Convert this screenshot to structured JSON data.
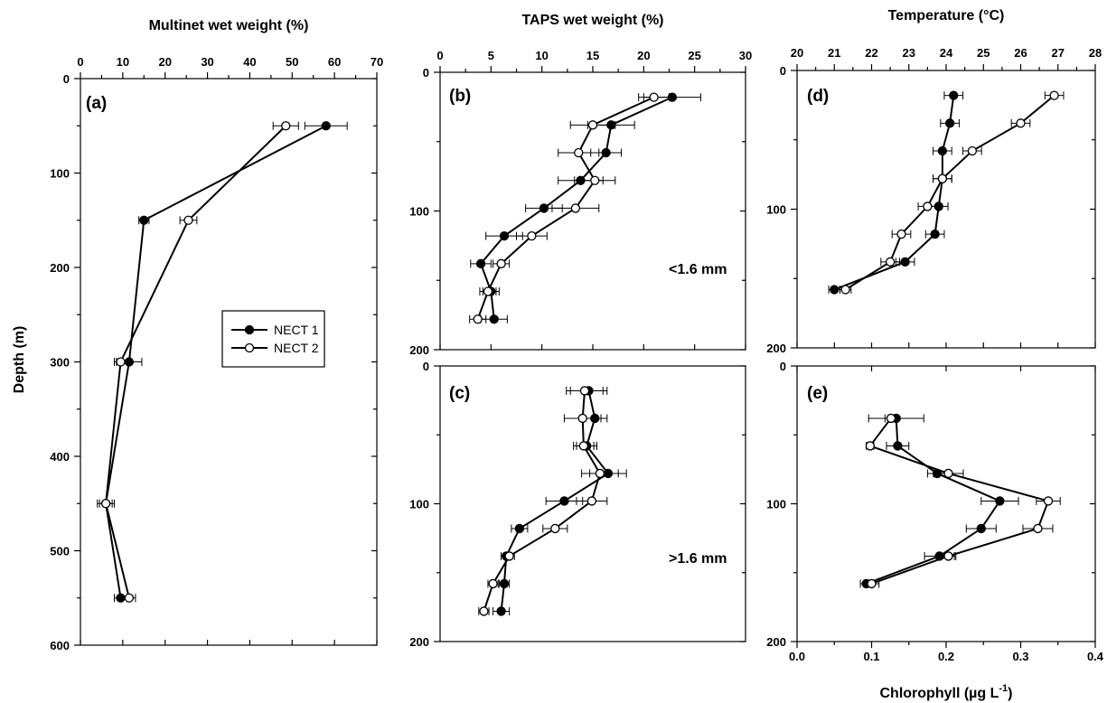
{
  "legend": [
    {
      "name": "NECT 1",
      "marker": "filled"
    },
    {
      "name": "NECT 2",
      "marker": "open"
    }
  ],
  "shared_y_label": "Depth (m)",
  "chart_data": [
    {
      "id": "a",
      "type": "line",
      "panel_label": "(a)",
      "title": "Multinet wet weight (%)",
      "xlabel": "Multinet wet weight (%)",
      "ylabel": "Depth (m)",
      "xlim": [
        0,
        70
      ],
      "ylim": [
        0,
        600
      ],
      "xticks": [
        0,
        10,
        20,
        30,
        40,
        50,
        60,
        70
      ],
      "yticks": [
        0,
        100,
        200,
        300,
        400,
        500,
        600
      ],
      "x_axis_position": "top",
      "y_inverted": true,
      "series": [
        {
          "name": "NECT 1",
          "marker": "filled",
          "points": [
            {
              "x": 58.0,
              "y": 50,
              "err": 5.0
            },
            {
              "x": 15.0,
              "y": 150,
              "err": 1.2
            },
            {
              "x": 11.5,
              "y": 300,
              "err": 3.0
            },
            {
              "x": 6.0,
              "y": 450,
              "err": 2.0
            },
            {
              "x": 9.5,
              "y": 550,
              "err": 1.5
            }
          ]
        },
        {
          "name": "NECT 2",
          "marker": "open",
          "points": [
            {
              "x": 48.5,
              "y": 50,
              "err": 3.0
            },
            {
              "x": 25.5,
              "y": 150,
              "err": 2.0
            },
            {
              "x": 9.5,
              "y": 300,
              "err": 1.5
            },
            {
              "x": 6.0,
              "y": 450,
              "err": 1.5
            },
            {
              "x": 11.5,
              "y": 550,
              "err": 1.5
            }
          ]
        }
      ]
    },
    {
      "id": "b",
      "type": "line",
      "panel_label": "(b)",
      "title": "TAPS wet weight (%)",
      "xlabel": "TAPS wet weight (%)",
      "ylabel": "",
      "xlim": [
        0,
        30
      ],
      "ylim": [
        0,
        200
      ],
      "xticks": [
        0,
        5,
        10,
        15,
        20,
        25,
        30
      ],
      "yticks": [
        0,
        100,
        200
      ],
      "x_axis_position": "top",
      "y_inverted": true,
      "annotation": "<1.6 mm",
      "series": [
        {
          "name": "NECT 1",
          "marker": "filled",
          "points": [
            {
              "x": 22.8,
              "y": 18,
              "err": 2.8
            },
            {
              "x": 16.8,
              "y": 38,
              "err": 2.3
            },
            {
              "x": 16.3,
              "y": 58,
              "err": 1.5
            },
            {
              "x": 13.8,
              "y": 78,
              "err": 2.2
            },
            {
              "x": 10.2,
              "y": 98,
              "err": 1.8
            },
            {
              "x": 6.3,
              "y": 118,
              "err": 1.8
            },
            {
              "x": 4.0,
              "y": 138,
              "err": 1.0
            },
            {
              "x": 5.0,
              "y": 158,
              "err": 0.8
            },
            {
              "x": 5.3,
              "y": 178,
              "err": 1.3
            }
          ]
        },
        {
          "name": "NECT 2",
          "marker": "open",
          "points": [
            {
              "x": 21.0,
              "y": 18,
              "err": 1.5
            },
            {
              "x": 15.0,
              "y": 38,
              "err": 2.2
            },
            {
              "x": 13.6,
              "y": 58,
              "err": 2.0
            },
            {
              "x": 15.2,
              "y": 78,
              "err": 2.0
            },
            {
              "x": 13.3,
              "y": 98,
              "err": 2.3
            },
            {
              "x": 9.0,
              "y": 118,
              "err": 1.5
            },
            {
              "x": 6.0,
              "y": 138,
              "err": 0.8
            },
            {
              "x": 4.7,
              "y": 158,
              "err": 0.8
            },
            {
              "x": 3.7,
              "y": 178,
              "err": 0.8
            }
          ]
        }
      ]
    },
    {
      "id": "c",
      "type": "line",
      "panel_label": "(c)",
      "title": "",
      "xlabel": "",
      "ylabel": "",
      "xlim": [
        0,
        30
      ],
      "ylim": [
        0,
        200
      ],
      "xticks": [],
      "yticks": [
        0,
        100,
        200
      ],
      "y_inverted": true,
      "annotation": ">1.6 mm",
      "series": [
        {
          "name": "NECT 1",
          "marker": "filled",
          "points": [
            {
              "x": 14.6,
              "y": 18,
              "err": 1.8
            },
            {
              "x": 15.2,
              "y": 38,
              "err": 1.2
            },
            {
              "x": 14.4,
              "y": 58,
              "err": 1.0
            },
            {
              "x": 16.5,
              "y": 78,
              "err": 1.8
            },
            {
              "x": 12.2,
              "y": 98,
              "err": 1.8
            },
            {
              "x": 7.8,
              "y": 118,
              "err": 0.8
            },
            {
              "x": 6.5,
              "y": 138,
              "err": 0.5
            },
            {
              "x": 6.3,
              "y": 158,
              "err": 0.5
            },
            {
              "x": 6.0,
              "y": 178,
              "err": 0.8
            }
          ]
        },
        {
          "name": "NECT 2",
          "marker": "open",
          "points": [
            {
              "x": 14.2,
              "y": 18,
              "err": 1.8
            },
            {
              "x": 14.0,
              "y": 38,
              "err": 1.8
            },
            {
              "x": 14.1,
              "y": 58,
              "err": 1.0
            },
            {
              "x": 15.7,
              "y": 78,
              "err": 1.8
            },
            {
              "x": 14.9,
              "y": 98,
              "err": 1.5
            },
            {
              "x": 11.3,
              "y": 118,
              "err": 1.2
            },
            {
              "x": 6.8,
              "y": 138,
              "err": 0.5
            },
            {
              "x": 5.2,
              "y": 158,
              "err": 0.5
            },
            {
              "x": 4.3,
              "y": 178,
              "err": 0.5
            }
          ]
        }
      ]
    },
    {
      "id": "d",
      "type": "line",
      "panel_label": "(d)",
      "title": "Temperature (°C)",
      "xlabel": "Temperature (°C)",
      "ylabel": "",
      "xlim": [
        20,
        28
      ],
      "ylim": [
        0,
        200
      ],
      "xticks": [
        20,
        21,
        22,
        23,
        24,
        25,
        26,
        27,
        28
      ],
      "yticks": [
        0,
        100,
        200
      ],
      "x_axis_position": "top",
      "y_inverted": true,
      "series": [
        {
          "name": "NECT 1",
          "marker": "filled",
          "points": [
            {
              "x": 24.2,
              "y": 18,
              "err": 0.25
            },
            {
              "x": 24.1,
              "y": 38,
              "err": 0.25
            },
            {
              "x": 23.9,
              "y": 58,
              "err": 0.25
            },
            {
              "x": 23.9,
              "y": 78,
              "err": 0.25
            },
            {
              "x": 23.8,
              "y": 98,
              "err": 0.25
            },
            {
              "x": 23.7,
              "y": 118,
              "err": 0.25
            },
            {
              "x": 22.9,
              "y": 138,
              "err": 0.25
            },
            {
              "x": 21.0,
              "y": 158,
              "err": 0.15
            }
          ]
        },
        {
          "name": "NECT 2",
          "marker": "open",
          "points": [
            {
              "x": 26.9,
              "y": 18,
              "err": 0.25
            },
            {
              "x": 26.0,
              "y": 38,
              "err": 0.25
            },
            {
              "x": 24.7,
              "y": 58,
              "err": 0.25
            },
            {
              "x": 23.9,
              "y": 78,
              "err": 0.25
            },
            {
              "x": 23.5,
              "y": 98,
              "err": 0.25
            },
            {
              "x": 22.8,
              "y": 118,
              "err": 0.25
            },
            {
              "x": 22.5,
              "y": 138,
              "err": 0.25
            },
            {
              "x": 21.3,
              "y": 158,
              "err": 0.15
            }
          ]
        }
      ]
    },
    {
      "id": "e",
      "type": "line",
      "panel_label": "(e)",
      "title": "Chlorophyll (µg L⁻¹)",
      "xlabel": "Chlorophyll (µg L⁻¹)",
      "ylabel": "",
      "xlim": [
        0.0,
        0.4
      ],
      "ylim": [
        0,
        200
      ],
      "xticks": [
        "0.0",
        "0.1",
        "0.2",
        "0.3",
        "0.4"
      ],
      "yticks": [
        0,
        100,
        200
      ],
      "x_axis_position": "bottom",
      "y_inverted": true,
      "series": [
        {
          "name": "NECT 1",
          "marker": "filled",
          "points": [
            {
              "x": 0.133,
              "y": 38,
              "err": 0.037
            },
            {
              "x": 0.135,
              "y": 58,
              "err": 0.015
            },
            {
              "x": 0.188,
              "y": 78,
              "err": 0.013
            },
            {
              "x": 0.272,
              "y": 98,
              "err": 0.025
            },
            {
              "x": 0.247,
              "y": 118,
              "err": 0.02
            },
            {
              "x": 0.191,
              "y": 138,
              "err": 0.02
            },
            {
              "x": 0.093,
              "y": 158,
              "err": 0.008
            }
          ]
        },
        {
          "name": "NECT 2",
          "marker": "open",
          "points": [
            {
              "x": 0.126,
              "y": 38,
              "err": 0.008
            },
            {
              "x": 0.098,
              "y": 58,
              "err": 0.005
            },
            {
              "x": 0.203,
              "y": 78,
              "err": 0.02
            },
            {
              "x": 0.337,
              "y": 98,
              "err": 0.016
            },
            {
              "x": 0.323,
              "y": 118,
              "err": 0.02
            },
            {
              "x": 0.203,
              "y": 138,
              "err": 0.01
            },
            {
              "x": 0.1,
              "y": 158,
              "err": 0.01
            }
          ]
        }
      ]
    }
  ]
}
